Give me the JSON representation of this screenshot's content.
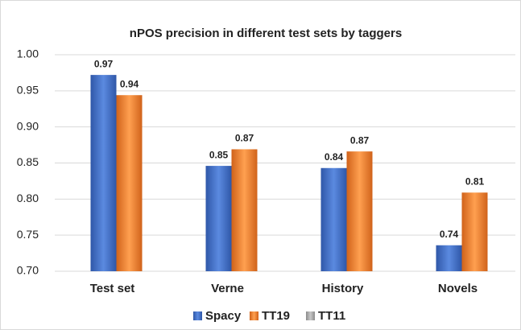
{
  "chart_data": {
    "type": "bar",
    "title": "nPOS precision in different test sets by taggers",
    "categories": [
      "Test set",
      "Verne",
      "History",
      "Novels"
    ],
    "series": [
      {
        "name": "Spacy",
        "color": "#4472c4",
        "values": [
          0.972,
          0.846,
          0.843,
          0.736
        ],
        "value_labels": [
          "0.97",
          "0.85",
          "0.84",
          "0.74"
        ]
      },
      {
        "name": "TT19",
        "color": "#ed7d31",
        "values": [
          0.944,
          0.869,
          0.866,
          0.809
        ],
        "value_labels": [
          "0.94",
          "0.87",
          "0.87",
          "0.81"
        ]
      },
      {
        "name": "TT11",
        "color": "#a5a5a5",
        "values": [
          null,
          null,
          null,
          null
        ]
      }
    ],
    "ylim": [
      0.7,
      1.0
    ],
    "yticks": [
      {
        "value": 0.7,
        "label": "0.70"
      },
      0.75,
      {
        "value": 0.8,
        "label": "0.80"
      },
      0.85,
      {
        "value": 0.9,
        "label": "0.90"
      },
      0.95,
      {
        "value": 1.0,
        "label": "1.00"
      }
    ],
    "grid": true,
    "legend": "bottom"
  }
}
